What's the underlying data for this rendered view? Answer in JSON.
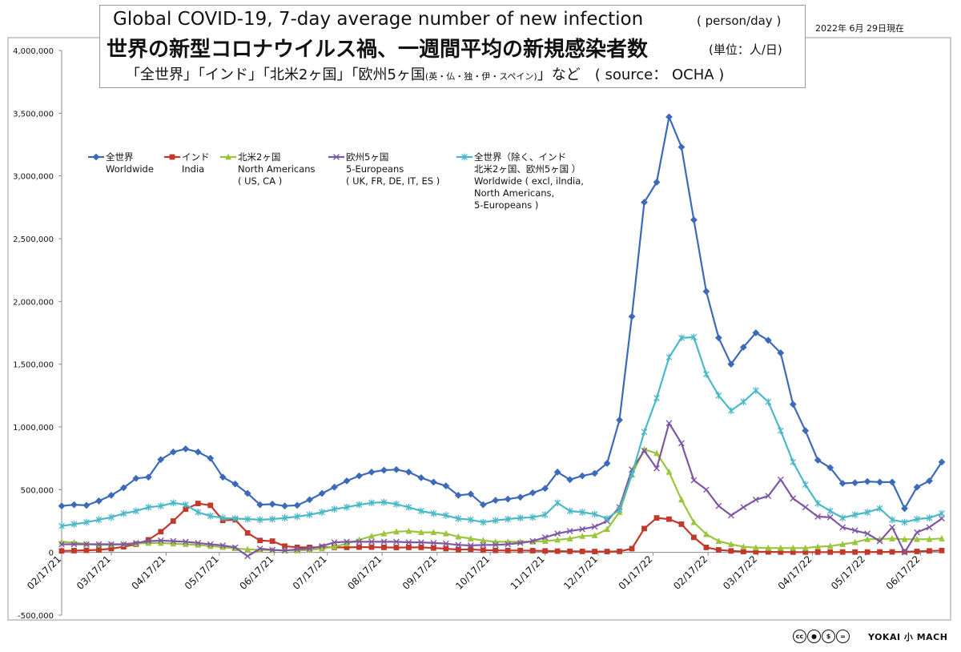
{
  "header": {
    "title_en": "Global COVID-19, 7-day average number of new infection",
    "unit_en": "( person/day )",
    "title_ja": "世界の新型コロナウイルス禍、一週間平均の新規感染者数",
    "unit_ja": "(単位：人/日)",
    "subtitle_main": "「全世界」「インド」「北米2ヶ国」「欧州5ヶ国",
    "subtitle_small": "(英・仏・独・伊・スペイン)",
    "subtitle_end": "」など　( source： OCHA )",
    "date_stamp": "2022年 6月 29日現在"
  },
  "footer": {
    "license_icons": [
      "cc",
      "by",
      "nc",
      "nd"
    ],
    "brand": "YOKAI 小 MACH"
  },
  "chart_data": {
    "type": "line",
    "title": "Global COVID-19, 7-day average number of new infection",
    "ylim": [
      -500000,
      4000000
    ],
    "yticks": [
      -500000,
      0,
      500000,
      1000000,
      1500000,
      2000000,
      2500000,
      3000000,
      3500000,
      4000000
    ],
    "ytick_labels": [
      "-500,000",
      "0",
      "500,000",
      "1,000,000",
      "1,500,000",
      "2,000,000",
      "2,500,000",
      "3,000,000",
      "3,500,000",
      "4,000,000"
    ],
    "xtick_labels": [
      "02/17/21",
      "03/17/21",
      "04/17/21",
      "05/17/21",
      "06/17/21",
      "07/17/21",
      "08/17/21",
      "09/17/21",
      "10/17/21",
      "11/17/21",
      "12/17/21",
      "01/17/22",
      "02/17/22",
      "03/17/22",
      "04/17/22",
      "05/17/22",
      "06/17/22"
    ],
    "xtick_dates": [
      "2021-02-17",
      "2021-03-17",
      "2021-04-17",
      "2021-05-17",
      "2021-06-17",
      "2021-07-17",
      "2021-08-17",
      "2021-09-17",
      "2021-10-17",
      "2021-11-17",
      "2021-12-17",
      "2022-01-17",
      "2022-02-17",
      "2022-03-17",
      "2022-04-17",
      "2022-05-17",
      "2022-06-17"
    ],
    "x_start": "2021-02-17",
    "x_end": "2022-06-29",
    "point_interval_days": 7,
    "grid": false,
    "legend_position": "top-left",
    "series": [
      {
        "name": "全世界",
        "name_en": "Worldwide",
        "color": "#3c6ab8",
        "marker": "diamond",
        "values": [
          370000,
          380000,
          375000,
          410000,
          455000,
          515000,
          590000,
          600000,
          740000,
          800000,
          825000,
          800000,
          750000,
          600000,
          545000,
          470000,
          380000,
          385000,
          370000,
          375000,
          420000,
          470000,
          520000,
          570000,
          610000,
          640000,
          655000,
          660000,
          640000,
          595000,
          560000,
          530000,
          455000,
          465000,
          380000,
          415000,
          425000,
          440000,
          475000,
          510000,
          640000,
          580000,
          610000,
          630000,
          710000,
          1055000,
          1880000,
          2790000,
          2950000,
          3470000,
          3230000,
          2650000,
          2080000,
          1710000,
          1500000,
          1635000,
          1750000,
          1690000,
          1590000,
          1180000,
          970000,
          735000,
          675000,
          550000,
          555000,
          565000,
          560000,
          560000,
          350000,
          520000,
          570000,
          720000
        ]
      },
      {
        "name": "インド",
        "name_en": "India",
        "color": "#c0392b",
        "marker": "square",
        "values": [
          12000,
          14000,
          17000,
          20000,
          30000,
          45000,
          65000,
          100000,
          165000,
          250000,
          345000,
          390000,
          375000,
          255000,
          260000,
          155000,
          95000,
          90000,
          50000,
          40000,
          40000,
          42000,
          40000,
          40000,
          42000,
          42000,
          40000,
          39000,
          40000,
          40000,
          35000,
          30000,
          22000,
          25000,
          18000,
          16000,
          15000,
          15000,
          14000,
          12000,
          10000,
          9000,
          8000,
          7000,
          7000,
          8000,
          30000,
          190000,
          275000,
          265000,
          225000,
          120000,
          40000,
          20000,
          12000,
          7000,
          5000,
          4000,
          3000,
          2500,
          2500,
          2500,
          2500,
          3000,
          3000,
          3000,
          3500,
          4000,
          5000,
          8000,
          12000,
          15000
        ]
      },
      {
        "name": "北米2ヶ国",
        "name_en": "North Americans",
        "name_sub": "( US, CA )",
        "color": "#9bc53d",
        "marker": "triangle",
        "values": [
          85000,
          78000,
          68000,
          60000,
          62000,
          65000,
          70000,
          75000,
          75000,
          70000,
          65000,
          60000,
          50000,
          42000,
          32000,
          25000,
          20000,
          18000,
          16000,
          15000,
          20000,
          30000,
          45000,
          70000,
          100000,
          130000,
          150000,
          165000,
          170000,
          160000,
          160000,
          150000,
          125000,
          110000,
          95000,
          85000,
          85000,
          85000,
          85000,
          90000,
          100000,
          110000,
          130000,
          135000,
          185000,
          320000,
          620000,
          820000,
          790000,
          640000,
          420000,
          240000,
          145000,
          90000,
          65000,
          45000,
          38000,
          35000,
          35000,
          35000,
          35000,
          45000,
          50000,
          65000,
          80000,
          105000,
          105000,
          110000,
          105000,
          105000,
          105000,
          110000
        ]
      },
      {
        "name": "欧州5ヶ国",
        "name_en": "5-Europeans",
        "name_sub": "( UK, FR, DE, IT, ES )",
        "color": "#7e57a3",
        "marker": "x",
        "values": [
          65000,
          65000,
          65000,
          65000,
          65000,
          65000,
          75000,
          90000,
          95000,
          90000,
          85000,
          75000,
          65000,
          55000,
          40000,
          -30000,
          30000,
          20000,
          15000,
          25000,
          30000,
          50000,
          80000,
          85000,
          85000,
          85000,
          85000,
          85000,
          80000,
          80000,
          75000,
          70000,
          60000,
          55000,
          60000,
          60000,
          65000,
          75000,
          90000,
          120000,
          150000,
          170000,
          185000,
          205000,
          250000,
          360000,
          660000,
          810000,
          670000,
          1030000,
          870000,
          575000,
          500000,
          370000,
          295000,
          360000,
          420000,
          450000,
          580000,
          430000,
          360000,
          285000,
          280000,
          200000,
          175000,
          150000,
          90000,
          200000,
          0,
          160000,
          200000,
          270000
        ]
      },
      {
        "name": "全世界（除く、インド\n北米2ヶ国、欧州5ヶ国 ）",
        "name_en": "Worldwide ( excl, ilndia,\nNorth Americans,\n5-Europeans )",
        "color": "#4ab8c8",
        "marker": "star",
        "values": [
          210000,
          225000,
          240000,
          260000,
          280000,
          310000,
          330000,
          360000,
          370000,
          395000,
          380000,
          320000,
          290000,
          275000,
          270000,
          265000,
          260000,
          265000,
          275000,
          285000,
          300000,
          320000,
          345000,
          360000,
          380000,
          395000,
          400000,
          385000,
          360000,
          330000,
          310000,
          295000,
          270000,
          260000,
          240000,
          255000,
          265000,
          275000,
          280000,
          300000,
          395000,
          330000,
          320000,
          305000,
          270000,
          340000,
          620000,
          960000,
          1230000,
          1555000,
          1710000,
          1715000,
          1420000,
          1250000,
          1130000,
          1200000,
          1290000,
          1200000,
          970000,
          720000,
          540000,
          390000,
          330000,
          275000,
          300000,
          320000,
          350000,
          260000,
          240000,
          265000,
          275000,
          310000
        ]
      }
    ]
  }
}
